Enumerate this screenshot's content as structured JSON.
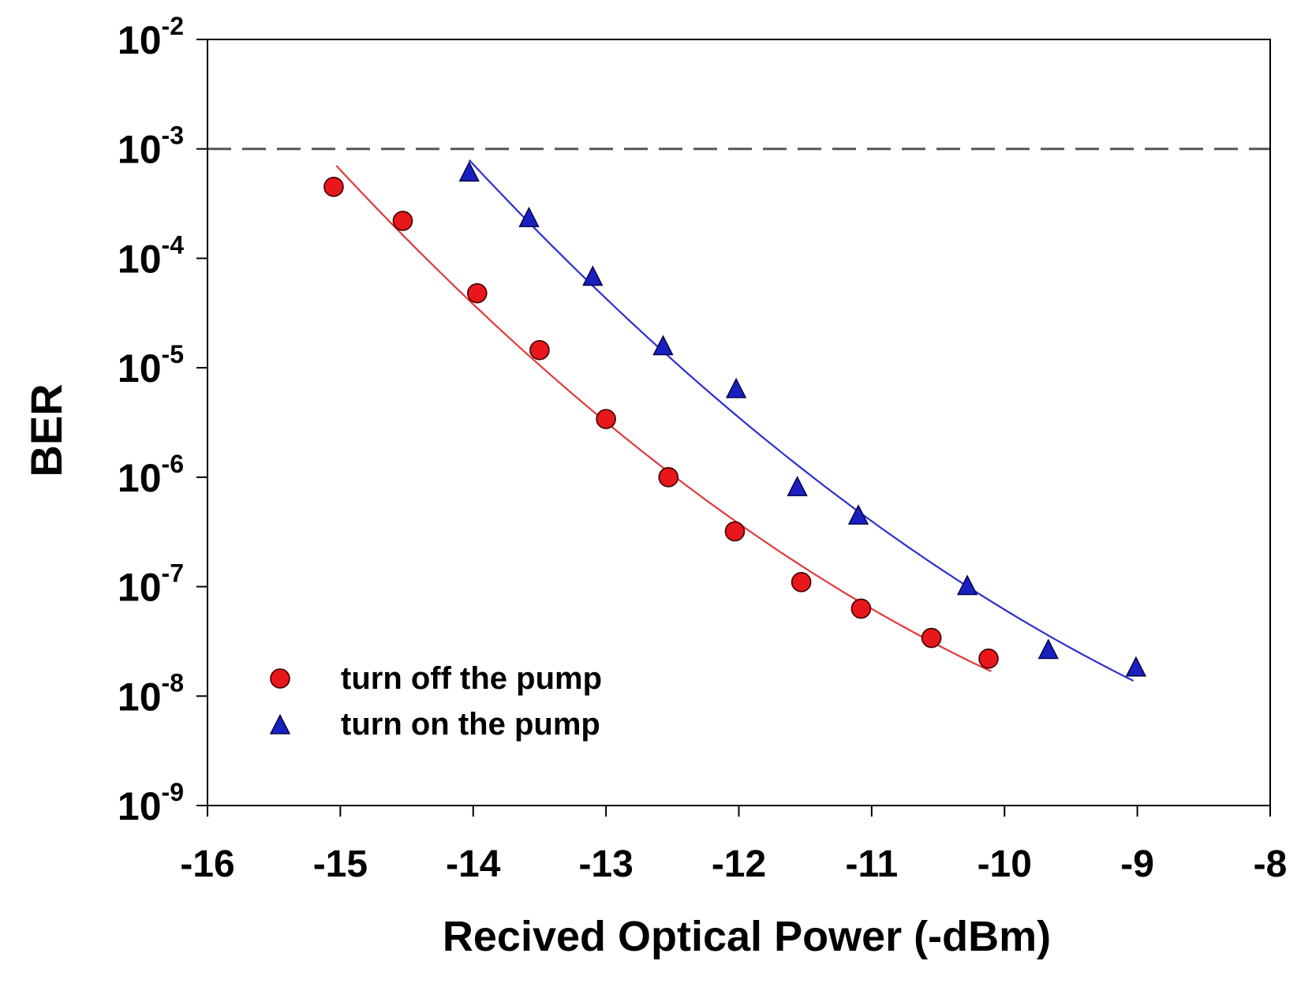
{
  "chart_data": {
    "type": "scatter",
    "title": "",
    "xlabel": "Recived Optical Power (-dBm)",
    "ylabel": "BER",
    "xlim": [
      -16,
      -8
    ],
    "ylim_log10": [
      -9,
      -2
    ],
    "y_scale": "log",
    "x_ticks": [
      -16,
      -15,
      -14,
      -13,
      -12,
      -11,
      -10,
      -9,
      -8
    ],
    "x_tick_labels": [
      "-16",
      "-15",
      "-14",
      "-13",
      "-12",
      "-11",
      "-10",
      "-9",
      "-8"
    ],
    "y_ticks_exponent": [
      -2,
      -3,
      -4,
      -5,
      -6,
      -7,
      -8,
      -9
    ],
    "y_tick_labels": [
      {
        "base": "10",
        "exp": "-2"
      },
      {
        "base": "10",
        "exp": "-3"
      },
      {
        "base": "10",
        "exp": "-4"
      },
      {
        "base": "10",
        "exp": "-5"
      },
      {
        "base": "10",
        "exp": "-6"
      },
      {
        "base": "10",
        "exp": "-7"
      },
      {
        "base": "10",
        "exp": "-8"
      },
      {
        "base": "10",
        "exp": "-9"
      }
    ],
    "threshold_line": {
      "y": 0.001,
      "style": "dashed",
      "color": "#555555"
    },
    "legend_position": "bottom-left",
    "series": [
      {
        "name": "turn off the pump",
        "marker": "circle",
        "color": "#e8171b",
        "line_color": "#e03a3a",
        "x": [
          -15.05,
          -14.53,
          -13.97,
          -13.5,
          -13.0,
          -12.53,
          -12.03,
          -11.53,
          -11.08,
          -10.55,
          -10.12
        ],
        "y": [
          0.00045,
          0.00022,
          4.8e-05,
          1.45e-05,
          3.4e-06,
          1e-06,
          3.2e-07,
          1.1e-07,
          6.3e-08,
          3.4e-08,
          2.2e-08
        ],
        "fit_x": [
          -15.03,
          -10.1
        ],
        "fit_log10_y_at_ends": [
          -3.13,
          -7.72
        ]
      },
      {
        "name": "turn on the pump",
        "marker": "triangle",
        "color": "#1a1fbf",
        "line_color": "#2a2fd0",
        "x": [
          -14.03,
          -13.58,
          -13.1,
          -12.57,
          -12.02,
          -11.56,
          -11.1,
          -10.28,
          -9.67,
          -9.01
        ],
        "y": [
          0.0006,
          0.00023,
          6.7e-05,
          1.55e-05,
          6.3e-06,
          8e-07,
          4.4e-07,
          1e-07,
          2.6e-08,
          1.8e-08
        ],
        "fit_x": [
          -14.03,
          -9.03
        ],
        "fit_log10_y_at_ends": [
          -3.12,
          -7.89
        ]
      }
    ]
  }
}
